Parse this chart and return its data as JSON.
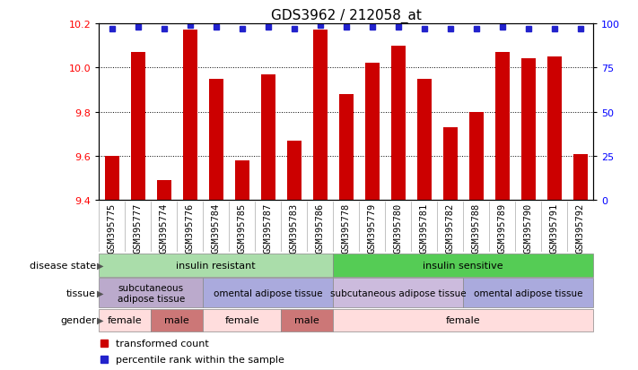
{
  "title": "GDS3962 / 212058_at",
  "samples": [
    "GSM395775",
    "GSM395777",
    "GSM395774",
    "GSM395776",
    "GSM395784",
    "GSM395785",
    "GSM395787",
    "GSM395783",
    "GSM395786",
    "GSM395778",
    "GSM395779",
    "GSM395780",
    "GSM395781",
    "GSM395782",
    "GSM395788",
    "GSM395789",
    "GSM395790",
    "GSM395791",
    "GSM395792"
  ],
  "transformed_counts": [
    9.6,
    10.07,
    9.49,
    10.17,
    9.95,
    9.58,
    9.97,
    9.67,
    10.17,
    9.88,
    10.02,
    10.1,
    9.95,
    9.73,
    9.8,
    10.07,
    10.04,
    10.05,
    9.61
  ],
  "percentile_ranks": [
    97,
    98,
    97,
    99,
    98,
    97,
    98,
    97,
    99,
    98,
    98,
    98,
    97,
    97,
    97,
    98,
    97,
    97,
    97
  ],
  "ylim_left": [
    9.4,
    10.2
  ],
  "ylim_right": [
    0,
    100
  ],
  "yticks_left": [
    9.4,
    9.6,
    9.8,
    10.0,
    10.2
  ],
  "yticks_right": [
    0,
    25,
    50,
    75,
    100
  ],
  "bar_color": "#cc0000",
  "dot_color": "#2222cc",
  "disease_state_groups": [
    {
      "label": "insulin resistant",
      "start": 0,
      "end": 9,
      "color": "#aaddaa"
    },
    {
      "label": "insulin sensitive",
      "start": 9,
      "end": 19,
      "color": "#55cc55"
    }
  ],
  "tissue_groups": [
    {
      "label": "subcutaneous\nadipose tissue",
      "start": 0,
      "end": 4,
      "color": "#bbaacc"
    },
    {
      "label": "omental adipose tissue",
      "start": 4,
      "end": 9,
      "color": "#aaaadd"
    },
    {
      "label": "subcutaneous adipose tissue",
      "start": 9,
      "end": 14,
      "color": "#ccbbdd"
    },
    {
      "label": "omental adipose tissue",
      "start": 14,
      "end": 19,
      "color": "#aaaadd"
    }
  ],
  "gender_groups": [
    {
      "label": "female",
      "start": 0,
      "end": 2,
      "color": "#ffdddd"
    },
    {
      "label": "male",
      "start": 2,
      "end": 4,
      "color": "#cc7777"
    },
    {
      "label": "female",
      "start": 4,
      "end": 7,
      "color": "#ffdddd"
    },
    {
      "label": "male",
      "start": 7,
      "end": 9,
      "color": "#cc7777"
    },
    {
      "label": "female",
      "start": 9,
      "end": 19,
      "color": "#ffdddd"
    }
  ],
  "row_labels": [
    "disease state",
    "tissue",
    "gender"
  ],
  "legend_items": [
    {
      "label": "transformed count",
      "color": "#cc0000"
    },
    {
      "label": "percentile rank within the sample",
      "color": "#2222cc"
    }
  ]
}
